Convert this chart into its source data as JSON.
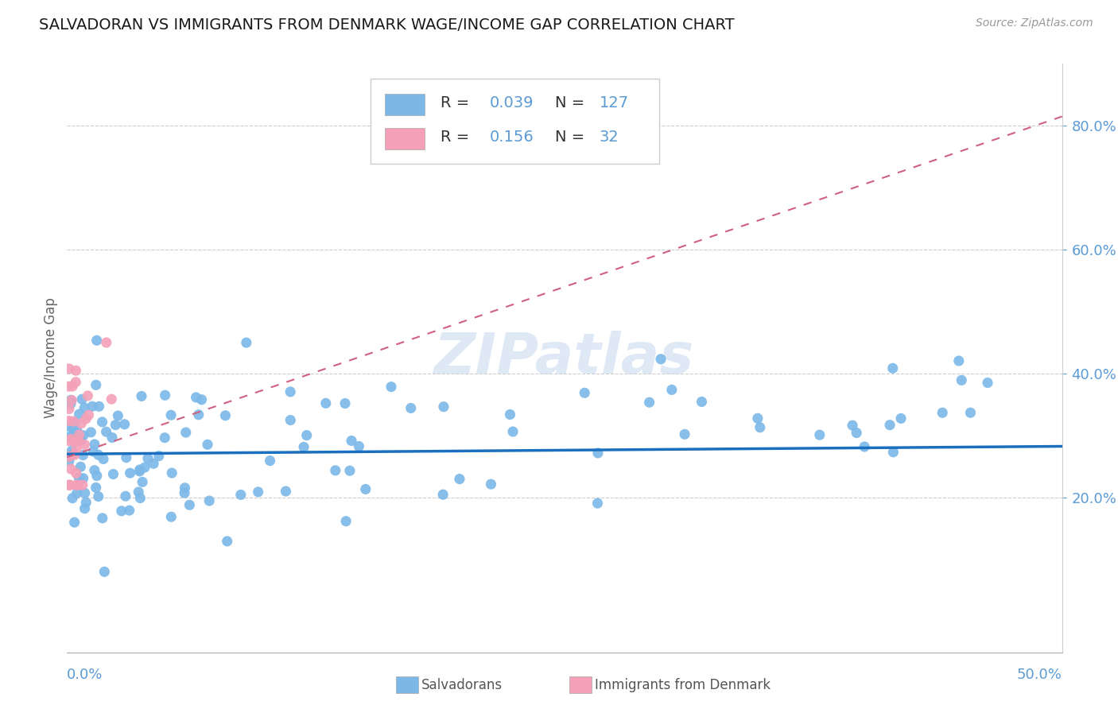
{
  "title": "SALVADORAN VS IMMIGRANTS FROM DENMARK WAGE/INCOME GAP CORRELATION CHART",
  "source": "Source: ZipAtlas.com",
  "ylabel": "Wage/Income Gap",
  "blue_color": "#7bb8e8",
  "pink_color": "#f4a0b8",
  "blue_line_color": "#1a6fbe",
  "pink_line_color": "#d06080",
  "watermark": "ZIPatlas",
  "blue_R": 0.039,
  "blue_N": 127,
  "pink_R": 0.156,
  "pink_N": 32,
  "xlim": [
    0.0,
    0.5
  ],
  "ylim": [
    -0.05,
    0.9
  ],
  "yticks": [
    0.2,
    0.4,
    0.6,
    0.8
  ],
  "blue_intercept": 0.27,
  "blue_slope": 0.025,
  "pink_intercept": 0.265,
  "pink_slope": 1.1
}
